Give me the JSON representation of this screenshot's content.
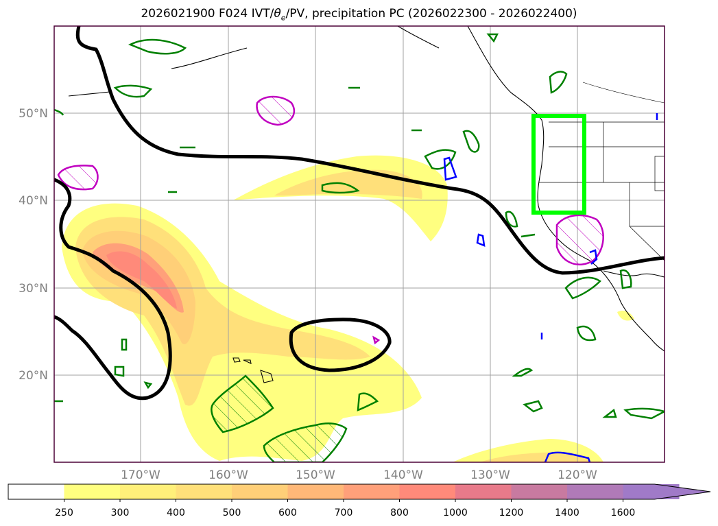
{
  "title": {
    "prefix": "2026021900 F024 IVT/",
    "theta_symbol": "θ",
    "theta_subscript": "e",
    "middle": "/PV, precipitation PC ",
    "period": "(2026022300 - 2026022400)"
  },
  "axes": {
    "lon_labels": [
      "170°W",
      "160°W",
      "150°W",
      "140°W",
      "130°W",
      "120°W"
    ],
    "lat_labels": [
      "50°N",
      "40°N",
      "30°N",
      "20°N"
    ]
  },
  "colorbar": {
    "ticks": [
      "250",
      "300",
      "400",
      "500",
      "600",
      "700",
      "800",
      "1000",
      "1200",
      "1400",
      "1600"
    ],
    "colors": [
      "#ffffff",
      "#ffff80",
      "#fff07a",
      "#ffe07a",
      "#ffcf78",
      "#ffb878",
      "#ffa07a",
      "#ff8a7a",
      "#e87a8a",
      "#c87aa0",
      "#b07ab8",
      "#a07ac8"
    ]
  },
  "colors": {
    "ivt_light": "#ffff80",
    "ivt_mid": "#ffd27a",
    "ivt_high": "#ff8a7a",
    "theta_contour": "#000000",
    "pv_contour": "#008000",
    "pv_high": "#c000c0",
    "pv_blue": "#0000ff",
    "box": "#00ff00",
    "grid": "#a0a0a0"
  }
}
